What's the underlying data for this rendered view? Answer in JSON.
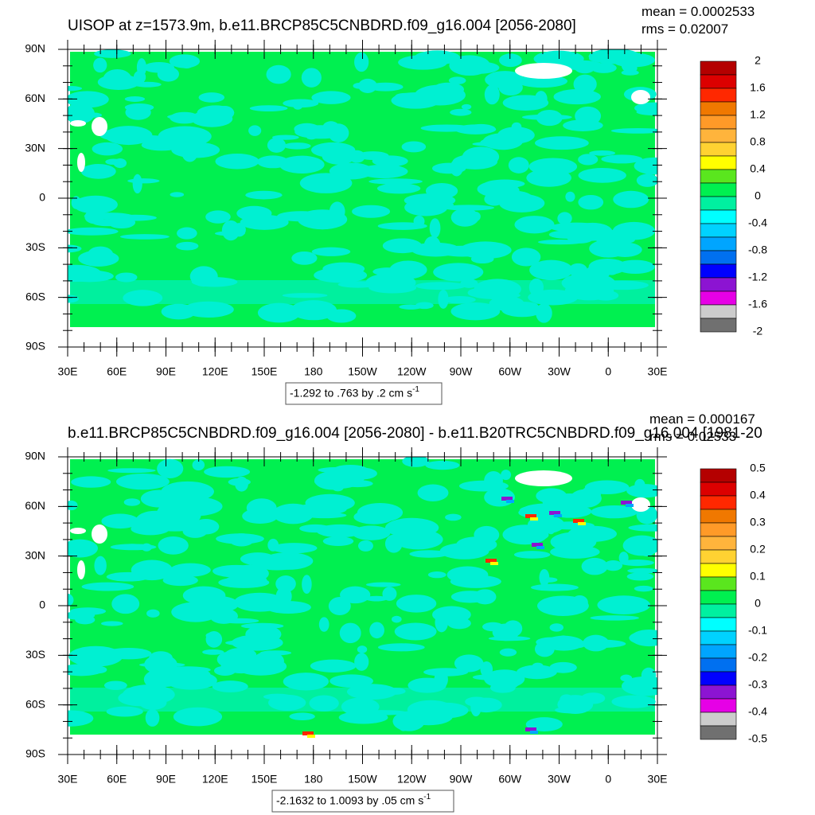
{
  "panels": [
    {
      "title": "UISOP at z=1573.9m, b.e11.BRCP85C5CNBDRD.f09_g16.004 [2056-2080]",
      "mean": "mean = 0.0002533",
      "rms": "rms = 0.02007",
      "lat_labels": [
        "90N",
        "60N",
        "30N",
        "0",
        "30S",
        "60S",
        "90S"
      ],
      "lon_labels": [
        "30E",
        "60E",
        "90E",
        "120E",
        "150E",
        "180",
        "150W",
        "120W",
        "90W",
        "60W",
        "30W",
        "0",
        "30E"
      ],
      "colorbar": {
        "labels": [
          2,
          1.6,
          1.2,
          0.8,
          0.4,
          0,
          -0.4,
          -0.8,
          -1.2,
          -1.6,
          -2
        ]
      },
      "info": {
        "text": "-1.292 to .763 by .2 cm s",
        "sup": "-1"
      }
    },
    {
      "title": "b.e11.BRCP85C5CNBDRD.f09_g16.004 [2056-2080] - b.e11.B20TRC5CNBDRD.f09_g16.004 [1981-20",
      "mean": "mean = 0.000167",
      "rms": "rms = 0.02533",
      "lat_labels": [
        "90N",
        "60N",
        "30N",
        "0",
        "30S",
        "60S",
        "90S"
      ],
      "lon_labels": [
        "30E",
        "60E",
        "90E",
        "120E",
        "150E",
        "180",
        "150W",
        "120W",
        "90W",
        "60W",
        "30W",
        "0",
        "30E"
      ],
      "colorbar": {
        "labels": [
          0.5,
          0.4,
          0.3,
          0.2,
          0.1,
          0,
          -0.1,
          -0.2,
          -0.3,
          -0.4,
          -0.5
        ]
      },
      "info": {
        "text": "-2.1632 to 1.0093 by .05 cm s",
        "sup": "-1"
      }
    }
  ],
  "colorbar_colors": [
    "#b40000",
    "#dc0000",
    "#ff2800",
    "#f07800",
    "#ff9a28",
    "#ffb43c",
    "#ffd232",
    "#ffff00",
    "#5ae61e",
    "#00f050",
    "#00f0a0",
    "#00ffff",
    "#00d2ff",
    "#00a5ff",
    "#0070f0",
    "#0000ff",
    "#8c14d2",
    "#e600e6",
    "#cccccc",
    "#707070"
  ]
}
